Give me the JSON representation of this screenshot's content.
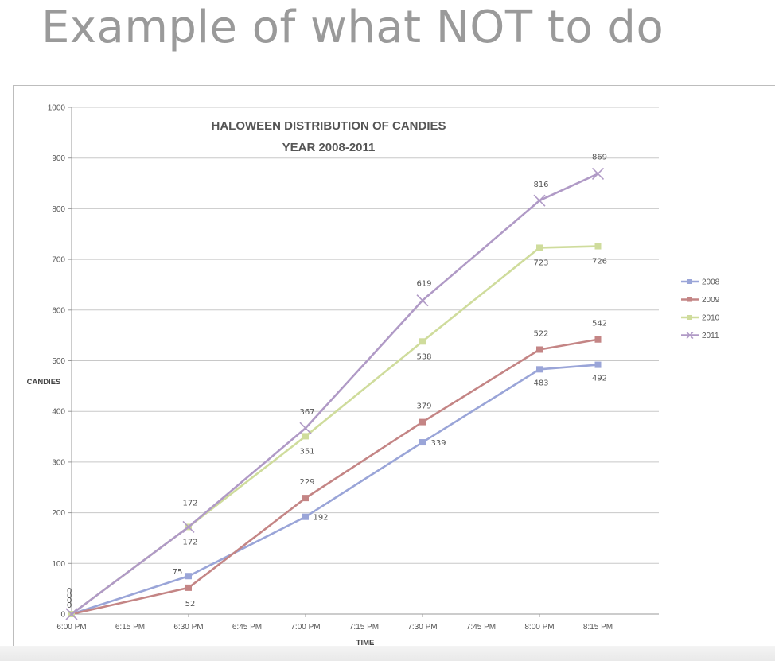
{
  "slide": {
    "title": "Example of what NOT to do"
  },
  "chart_data": {
    "type": "line",
    "title": "HALOWEEN DISTRIBUTION OF CANDIES",
    "subtitle": "YEAR 2008-2011",
    "xlabel": "TIME",
    "ylabel": "CANDIES",
    "categories": [
      "6:00 PM",
      "6:15 PM",
      "6:30 PM",
      "6:45 PM",
      "7:00 PM",
      "7:15 PM",
      "7:30 PM",
      "7:45 PM",
      "8:00 PM",
      "8:15 PM"
    ],
    "ylim": [
      0,
      1000
    ],
    "yticks": [
      0,
      100,
      200,
      300,
      400,
      500,
      600,
      700,
      800,
      900,
      1000
    ],
    "grid": true,
    "legend_position": "right",
    "series": [
      {
        "name": "2008",
        "color": "#9aa5d8",
        "marker": "square",
        "points": [
          [
            0,
            0
          ],
          [
            2,
            75
          ],
          [
            4,
            192
          ],
          [
            6,
            339
          ],
          [
            8,
            483
          ],
          [
            9,
            492
          ]
        ],
        "labels": [
          [
            0,
            "0"
          ],
          [
            2,
            "75"
          ],
          [
            4,
            "192"
          ],
          [
            6,
            "339"
          ],
          [
            8,
            "483"
          ],
          [
            9,
            "492"
          ]
        ]
      },
      {
        "name": "2009",
        "color": "#c48585",
        "marker": "square",
        "points": [
          [
            0,
            0
          ],
          [
            2,
            52
          ],
          [
            4,
            229
          ],
          [
            6,
            379
          ],
          [
            8,
            522
          ],
          [
            9,
            542
          ]
        ],
        "labels": [
          [
            0,
            "0"
          ],
          [
            2,
            "52"
          ],
          [
            4,
            "229"
          ],
          [
            6,
            "379"
          ],
          [
            8,
            "522"
          ],
          [
            9,
            "542"
          ]
        ]
      },
      {
        "name": "2010",
        "color": "#cfdc9c",
        "marker": "square",
        "points": [
          [
            0,
            0
          ],
          [
            2,
            172
          ],
          [
            4,
            351
          ],
          [
            6,
            538
          ],
          [
            8,
            723
          ],
          [
            9,
            726
          ]
        ],
        "labels": [
          [
            0,
            "0"
          ],
          [
            2,
            "172"
          ],
          [
            4,
            "351"
          ],
          [
            6,
            "538"
          ],
          [
            8,
            "723"
          ],
          [
            9,
            "726"
          ]
        ]
      },
      {
        "name": "2011",
        "color": "#b09ac6",
        "marker": "x",
        "points": [
          [
            0,
            0
          ],
          [
            2,
            172
          ],
          [
            4,
            367
          ],
          [
            6,
            619
          ],
          [
            8,
            816
          ],
          [
            9,
            869
          ]
        ],
        "labels": [
          [
            0,
            "0"
          ],
          [
            2,
            "172"
          ],
          [
            4,
            "367"
          ],
          [
            6,
            "619"
          ],
          [
            8,
            "816"
          ],
          [
            9,
            "869"
          ]
        ]
      }
    ]
  }
}
